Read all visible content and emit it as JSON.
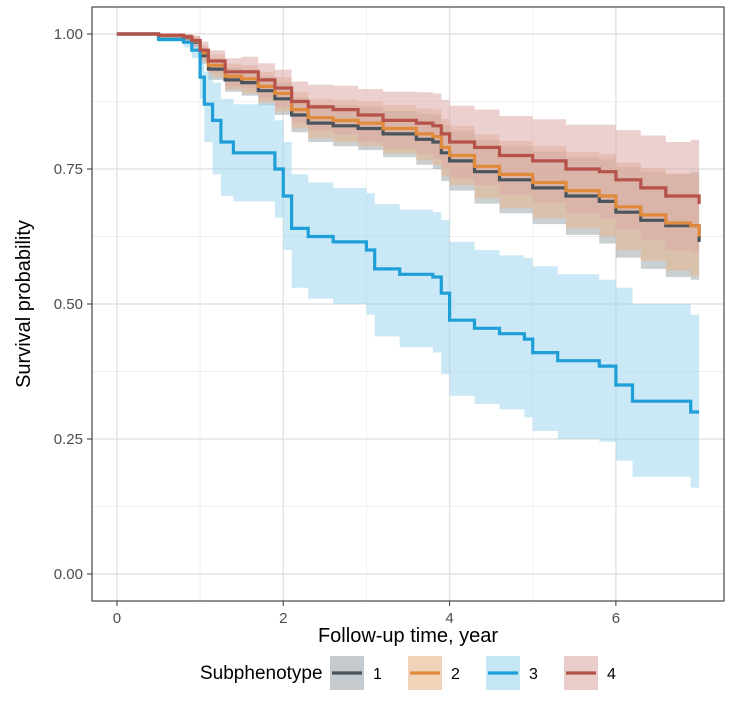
{
  "chart_data": {
    "type": "line",
    "subtype": "kaplan-meier survival curves with confidence bands",
    "title": "",
    "xlabel": "Follow-up time, year",
    "ylabel": "Survival probability",
    "xlim": [
      -0.3,
      7.3
    ],
    "ylim": [
      -0.05,
      1.05
    ],
    "x_ticks": [
      0,
      2,
      4,
      6
    ],
    "x_tick_labels": [
      "0",
      "2",
      "4",
      "6"
    ],
    "y_ticks": [
      0,
      0.25,
      0.5,
      0.75,
      1.0
    ],
    "y_tick_labels": [
      "0.00",
      "0.25",
      "0.50",
      "0.75",
      "1.00"
    ],
    "grid": true,
    "legend": {
      "title": "Subphenotype",
      "position": "bottom"
    },
    "series": [
      {
        "name": "1",
        "color": "#4a545c",
        "band_color": "#9ea7ad",
        "x": [
          0,
          0.2,
          0.5,
          0.8,
          0.9,
          1.0,
          1.1,
          1.3,
          1.5,
          1.7,
          1.9,
          2.1,
          2.3,
          2.6,
          2.9,
          3.2,
          3.6,
          3.8,
          3.9,
          4.0,
          4.3,
          4.6,
          5.0,
          5.4,
          5.8,
          6.0,
          6.3,
          6.6,
          6.9,
          7.0
        ],
        "y": [
          1.0,
          1.0,
          0.997,
          0.993,
          0.985,
          0.96,
          0.935,
          0.915,
          0.91,
          0.895,
          0.88,
          0.85,
          0.835,
          0.83,
          0.825,
          0.815,
          0.805,
          0.8,
          0.78,
          0.765,
          0.745,
          0.73,
          0.715,
          0.7,
          0.69,
          0.67,
          0.655,
          0.645,
          0.645,
          0.615
        ],
        "lower": [
          1.0,
          1.0,
          0.993,
          0.986,
          0.975,
          0.945,
          0.915,
          0.893,
          0.886,
          0.868,
          0.85,
          0.818,
          0.8,
          0.792,
          0.785,
          0.772,
          0.758,
          0.75,
          0.728,
          0.71,
          0.686,
          0.668,
          0.648,
          0.628,
          0.612,
          0.586,
          0.565,
          0.55,
          0.545,
          0.52
        ],
        "upper": [
          1.0,
          1.0,
          1.0,
          0.999,
          0.994,
          0.975,
          0.955,
          0.937,
          0.934,
          0.922,
          0.91,
          0.882,
          0.87,
          0.868,
          0.865,
          0.858,
          0.852,
          0.85,
          0.832,
          0.82,
          0.804,
          0.792,
          0.782,
          0.772,
          0.768,
          0.754,
          0.745,
          0.74,
          0.745,
          0.71
        ]
      },
      {
        "name": "2",
        "color": "#e08a3c",
        "band_color": "#e8b68c",
        "x": [
          0,
          0.2,
          0.5,
          0.8,
          0.9,
          1.0,
          1.1,
          1.3,
          1.5,
          1.7,
          1.9,
          2.1,
          2.3,
          2.6,
          2.9,
          3.2,
          3.6,
          3.8,
          3.9,
          4.0,
          4.3,
          4.6,
          5.0,
          5.4,
          5.8,
          6.0,
          6.3,
          6.6,
          6.9,
          7.0
        ],
        "y": [
          1.0,
          1.0,
          0.997,
          0.994,
          0.987,
          0.965,
          0.942,
          0.922,
          0.917,
          0.903,
          0.89,
          0.86,
          0.845,
          0.84,
          0.835,
          0.825,
          0.815,
          0.81,
          0.79,
          0.775,
          0.755,
          0.74,
          0.725,
          0.71,
          0.7,
          0.68,
          0.665,
          0.65,
          0.645,
          0.625
        ],
        "lower": [
          1.0,
          1.0,
          0.993,
          0.987,
          0.976,
          0.948,
          0.92,
          0.897,
          0.89,
          0.874,
          0.857,
          0.825,
          0.807,
          0.8,
          0.792,
          0.779,
          0.766,
          0.758,
          0.737,
          0.72,
          0.696,
          0.678,
          0.659,
          0.64,
          0.625,
          0.6,
          0.58,
          0.562,
          0.552,
          0.528
        ],
        "upper": [
          1.0,
          1.0,
          1.0,
          1.0,
          0.996,
          0.98,
          0.962,
          0.945,
          0.942,
          0.93,
          0.92,
          0.893,
          0.88,
          0.878,
          0.875,
          0.868,
          0.862,
          0.86,
          0.842,
          0.83,
          0.814,
          0.802,
          0.792,
          0.782,
          0.778,
          0.762,
          0.752,
          0.742,
          0.74,
          0.722
        ]
      },
      {
        "name": "3",
        "color": "#1f9fd8",
        "band_color": "#9fd5ef",
        "x": [
          0,
          0.2,
          0.5,
          0.8,
          0.9,
          1.0,
          1.05,
          1.15,
          1.25,
          1.4,
          1.7,
          1.9,
          2.0,
          2.1,
          2.3,
          2.6,
          3.0,
          3.1,
          3.4,
          3.8,
          3.9,
          4.0,
          4.3,
          4.6,
          4.9,
          5.0,
          5.3,
          5.8,
          6.0,
          6.2,
          6.6,
          6.9,
          7.0
        ],
        "y": [
          1.0,
          1.0,
          0.99,
          0.985,
          0.97,
          0.92,
          0.87,
          0.84,
          0.8,
          0.78,
          0.78,
          0.75,
          0.7,
          0.64,
          0.625,
          0.615,
          0.6,
          0.565,
          0.555,
          0.55,
          0.52,
          0.47,
          0.455,
          0.445,
          0.435,
          0.41,
          0.395,
          0.385,
          0.35,
          0.32,
          0.32,
          0.3,
          0.3
        ],
        "lower": [
          1.0,
          1.0,
          0.985,
          0.975,
          0.955,
          0.88,
          0.8,
          0.74,
          0.7,
          0.69,
          0.69,
          0.66,
          0.6,
          0.53,
          0.51,
          0.5,
          0.48,
          0.44,
          0.42,
          0.41,
          0.37,
          0.33,
          0.315,
          0.305,
          0.29,
          0.265,
          0.25,
          0.245,
          0.21,
          0.18,
          0.18,
          0.16,
          0.16
        ],
        "upper": [
          1.0,
          1.0,
          0.995,
          0.993,
          0.985,
          0.96,
          0.93,
          0.91,
          0.88,
          0.87,
          0.87,
          0.84,
          0.8,
          0.74,
          0.725,
          0.715,
          0.705,
          0.685,
          0.675,
          0.67,
          0.655,
          0.615,
          0.6,
          0.59,
          0.585,
          0.57,
          0.555,
          0.545,
          0.53,
          0.5,
          0.5,
          0.48,
          0.48
        ]
      },
      {
        "name": "4",
        "color": "#b5524a",
        "band_color": "#dcaaa8",
        "x": [
          0,
          0.2,
          0.5,
          0.8,
          0.9,
          1.0,
          1.1,
          1.3,
          1.5,
          1.7,
          1.9,
          2.1,
          2.3,
          2.6,
          2.9,
          3.2,
          3.6,
          3.8,
          3.9,
          4.0,
          4.3,
          4.6,
          5.0,
          5.4,
          5.8,
          6.0,
          6.3,
          6.6,
          6.9,
          7.0
        ],
        "y": [
          1.0,
          1.0,
          0.998,
          0.995,
          0.988,
          0.97,
          0.95,
          0.93,
          0.93,
          0.915,
          0.9,
          0.875,
          0.865,
          0.86,
          0.85,
          0.84,
          0.835,
          0.83,
          0.815,
          0.8,
          0.79,
          0.775,
          0.765,
          0.75,
          0.745,
          0.73,
          0.715,
          0.7,
          0.7,
          0.685
        ],
        "lower": [
          1.0,
          1.0,
          0.994,
          0.988,
          0.977,
          0.952,
          0.928,
          0.903,
          0.9,
          0.882,
          0.864,
          0.836,
          0.822,
          0.814,
          0.8,
          0.787,
          0.778,
          0.77,
          0.752,
          0.733,
          0.72,
          0.702,
          0.688,
          0.668,
          0.658,
          0.638,
          0.618,
          0.6,
          0.596,
          0.575
        ],
        "upper": [
          1.0,
          1.0,
          1.0,
          1.0,
          0.997,
          0.986,
          0.97,
          0.955,
          0.958,
          0.946,
          0.934,
          0.912,
          0.906,
          0.904,
          0.898,
          0.893,
          0.892,
          0.89,
          0.878,
          0.867,
          0.86,
          0.848,
          0.842,
          0.832,
          0.832,
          0.822,
          0.812,
          0.8,
          0.804,
          0.79
        ]
      }
    ]
  }
}
